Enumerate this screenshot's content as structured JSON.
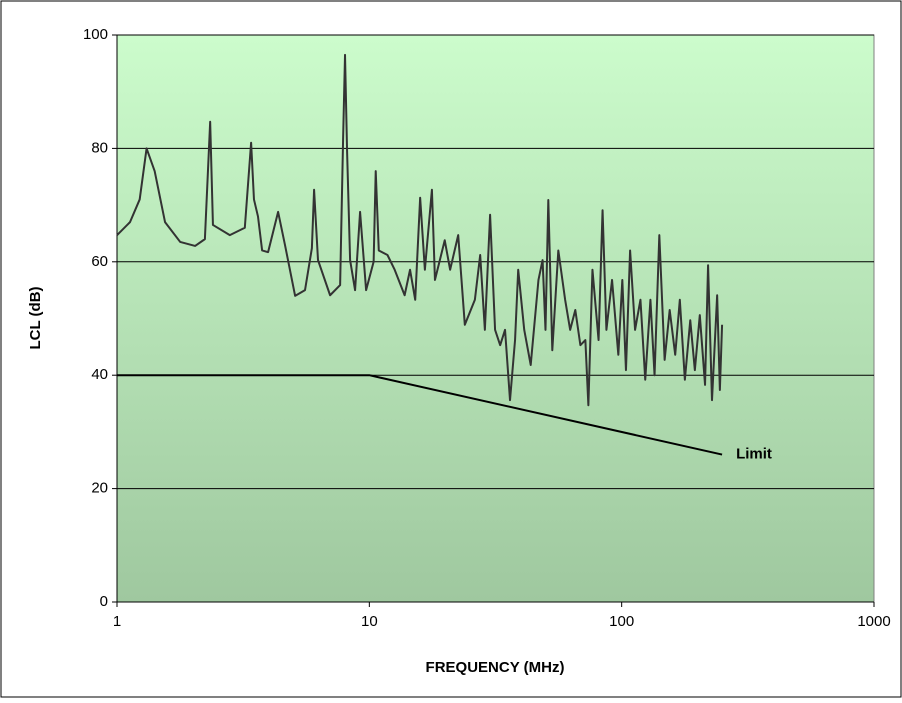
{
  "chart_data": {
    "type": "line",
    "xlabel": "FREQUENCY (MHz)",
    "ylabel": "LCL (dB)",
    "xscale": "log",
    "xlim": [
      1,
      1000
    ],
    "xticks": [
      1,
      10,
      100,
      1000
    ],
    "ylim": [
      0,
      100
    ],
    "yticks": [
      0,
      20,
      40,
      60,
      80,
      100
    ],
    "grid": true,
    "series": [
      {
        "color": "#333333",
        "x": [
          1,
          1.126,
          1.23,
          1.31,
          1.41,
          1.55,
          1.78,
          2.04,
          2.23,
          2.34,
          2.4,
          2.8,
          3.21,
          3.4,
          3.49,
          3.62,
          3.76,
          3.97,
          4.35,
          4.63,
          5.08,
          5.56,
          5.92,
          6.04,
          6.26,
          6.99,
          7.66,
          7.87,
          8.01,
          8.16,
          8.39,
          8.78,
          9.19,
          9.71,
          10.4,
          10.6,
          10.9,
          11.8,
          12.6,
          13.8,
          14.5,
          15.2,
          15.9,
          16.6,
          17.7,
          18.2,
          19.9,
          20.9,
          22.5,
          23.9,
          26.2,
          27.5,
          28.7,
          30.1,
          31.5,
          33,
          34.5,
          36.1,
          37.8,
          38.9,
          41.1,
          43.6,
          46.8,
          48.6,
          49.9,
          51.2,
          53.1,
          56.1,
          59.7,
          62.5,
          65.5,
          68.6,
          71.8,
          73.8,
          76.6,
          81,
          84,
          87,
          91.6,
          97,
          100.6,
          104,
          108,
          113,
          118.7,
          124,
          130,
          135,
          141,
          148,
          155,
          163,
          170,
          178,
          187,
          195,
          204,
          214,
          220,
          228,
          239,
          245,
          250
        ],
        "values": [
          64.7,
          67,
          71,
          80,
          76,
          67,
          63.5,
          62.8,
          64,
          84.7,
          66.5,
          64.7,
          66,
          81,
          71,
          68,
          62,
          61.7,
          68.8,
          63,
          54,
          55,
          62.4,
          72.7,
          60.3,
          54.1,
          55.9,
          81.5,
          96.5,
          79.7,
          60.3,
          55,
          68.8,
          55,
          60,
          76,
          62,
          61.2,
          58.6,
          54.1,
          58.6,
          53.3,
          71.3,
          58.6,
          72.7,
          56.8,
          63.8,
          58.6,
          64.7,
          48.9,
          53.3,
          61.2,
          48,
          68.3,
          48,
          45.3,
          48,
          35.6,
          46.2,
          58.6,
          48,
          41.8,
          56.8,
          60.3,
          48,
          70.9,
          44.4,
          62,
          53.3,
          48,
          51.5,
          45.3,
          46.2,
          34.7,
          58.6,
          46.2,
          69.1,
          48,
          56.8,
          43.6,
          56.8,
          40.9,
          62,
          48,
          53.3,
          39.2,
          53.3,
          40,
          64.7,
          42.7,
          51.5,
          43.6,
          53.3,
          39.2,
          49.7,
          40.9,
          50.6,
          38.3,
          59.4,
          35.6,
          54.1,
          37.4,
          48.9
        ]
      },
      {
        "name": "Limit",
        "color": "#000000",
        "x": [
          1,
          10,
          250
        ],
        "values": [
          40,
          40,
          26
        ]
      }
    ]
  }
}
